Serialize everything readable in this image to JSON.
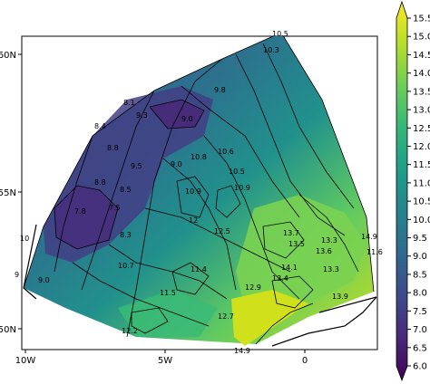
{
  "colormap": {
    "name": "viridis",
    "stops": [
      "#440154",
      "#482878",
      "#3e4989",
      "#31688e",
      "#26828e",
      "#1f9e89",
      "#35b779",
      "#6ece58",
      "#b5de2b",
      "#fde725"
    ],
    "min": 6.0,
    "max": 15.5
  },
  "colorbar": {
    "ticks": [
      "6.0",
      "6.5",
      "7.0",
      "7.5",
      "8.0",
      "8.5",
      "9.0",
      "9.5",
      "10.0",
      "10.5",
      "11.0",
      "11.5",
      "12.0",
      "12.5",
      "13.0",
      "13.5",
      "14.0",
      "14.5",
      "15.0",
      "15.5"
    ]
  },
  "axes": {
    "x_ticks": [
      "10W",
      "5W",
      "0"
    ],
    "y_ticks": [
      "60N",
      "55N",
      "50N"
    ]
  },
  "contour_labels": [
    {
      "text": "10.5"
    },
    {
      "text": "10.3"
    },
    {
      "text": "9.8"
    },
    {
      "text": "8.1"
    },
    {
      "text": "9.3"
    },
    {
      "text": "9.0"
    },
    {
      "text": "8.4"
    },
    {
      "text": "8.8"
    },
    {
      "text": "9.5"
    },
    {
      "text": "8.8"
    },
    {
      "text": "8.5"
    },
    {
      "text": "7.8"
    },
    {
      "text": "7.5"
    },
    {
      "text": "10.8"
    },
    {
      "text": "9.0"
    },
    {
      "text": "10.6"
    },
    {
      "text": "10.5"
    },
    {
      "text": "10.9"
    },
    {
      "text": "10.9"
    },
    {
      "text": "12"
    },
    {
      "text": "8.3"
    },
    {
      "text": "10.7"
    },
    {
      "text": "12.5"
    },
    {
      "text": "13.7"
    },
    {
      "text": "13.5"
    },
    {
      "text": "13.3"
    },
    {
      "text": "13.6"
    },
    {
      "text": "14.1"
    },
    {
      "text": "13.4"
    },
    {
      "text": "13.3"
    },
    {
      "text": "11.6"
    },
    {
      "text": "14.9"
    },
    {
      "text": "13.9"
    },
    {
      "text": "11.4"
    },
    {
      "text": "12.9"
    },
    {
      "text": "12.7"
    },
    {
      "text": "14.9"
    },
    {
      "text": "11.5"
    },
    {
      "text": "9"
    },
    {
      "text": "10"
    },
    {
      "text": "12.2"
    },
    {
      "text": "9.0"
    }
  ]
}
